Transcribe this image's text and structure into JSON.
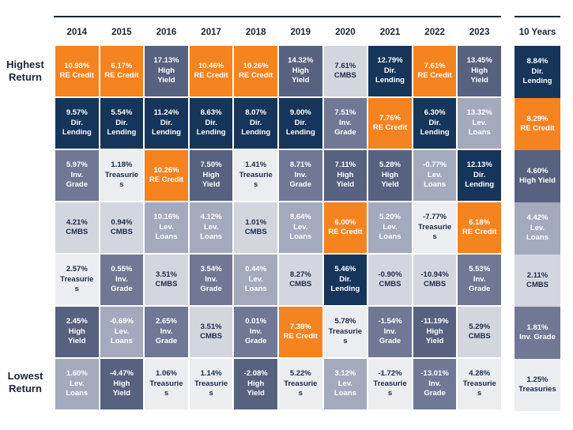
{
  "header": {
    "years": [
      "2014",
      "2015",
      "2016",
      "2017",
      "2018",
      "2019",
      "2020",
      "2021",
      "2022",
      "2023"
    ],
    "ten_years_label": "10 Years"
  },
  "left_labels": {
    "highest": "Highest Return",
    "lowest": "Lowest Return"
  },
  "palette": {
    "RE Credit": {
      "bg": "#F5831F",
      "fg": "#FFFFFF"
    },
    "Dir. Lending": {
      "bg": "#16355B",
      "fg": "#FFFFFF"
    },
    "High Yield": {
      "bg": "#56627F",
      "fg": "#FFFFFF"
    },
    "Inv. Grade": {
      "bg": "#707896",
      "fg": "#FFFFFF"
    },
    "Lev. Loans": {
      "bg": "#A4AABE",
      "fg": "#FFFFFF"
    },
    "CMBS": {
      "bg": "#D4D6DF",
      "fg": "#1B2B4A"
    },
    "Treasuries": {
      "bg": "#ECEDF1",
      "fg": "#1B2B4A"
    }
  },
  "chart_data": {
    "type": "heatmap",
    "columns": [
      "2014",
      "2015",
      "2016",
      "2017",
      "2018",
      "2019",
      "2020",
      "2021",
      "2022",
      "2023",
      "10 Years"
    ],
    "rank_top_label": "Highest Return",
    "rank_bottom_label": "Lowest Return",
    "rows": [
      [
        {
          "value": "10.98%",
          "asset": "RE Credit"
        },
        {
          "value": "6.17%",
          "asset": "RE Credit"
        },
        {
          "value": "17.13%",
          "asset": "High Yield"
        },
        {
          "value": "10.46%",
          "asset": "RE Credit"
        },
        {
          "value": "10.26%",
          "asset": "RE Credit"
        },
        {
          "value": "14.32%",
          "asset": "High Yield"
        },
        {
          "value": "7.61%",
          "asset": "CMBS"
        },
        {
          "value": "12.79%",
          "asset": "Dir. Lending"
        },
        {
          "value": "7.61%",
          "asset": "RE Credit"
        },
        {
          "value": "13.45%",
          "asset": "High Yield"
        },
        {
          "value": "8.84%",
          "asset": "Dir. Lending"
        }
      ],
      [
        {
          "value": "9.57%",
          "asset": "Dir. Lending"
        },
        {
          "value": "5.54%",
          "asset": "Dir. Lending"
        },
        {
          "value": "11.24%",
          "asset": "Dir. Lending"
        },
        {
          "value": "8.63%",
          "asset": "Dir. Lending"
        },
        {
          "value": "8.07%",
          "asset": "Dir. Lending"
        },
        {
          "value": "9.00%",
          "asset": "Dir. Lending"
        },
        {
          "value": "7.51%",
          "asset": "Inv. Grade"
        },
        {
          "value": "7.76%",
          "asset": "RE Credit"
        },
        {
          "value": "6.30%",
          "asset": "Dir. Lending"
        },
        {
          "value": "13.32%",
          "asset": "Lev. Loans"
        },
        {
          "value": "8.29%",
          "asset": "RE Credit"
        }
      ],
      [
        {
          "value": "5.97%",
          "asset": "Inv. Grade"
        },
        {
          "value": "1.18%",
          "asset": "Treasuries"
        },
        {
          "value": "10.26%",
          "asset": "RE Credit"
        },
        {
          "value": "7.50%",
          "asset": "High Yield"
        },
        {
          "value": "1.41%",
          "asset": "Treasuries"
        },
        {
          "value": "8.71%",
          "asset": "Inv. Grade"
        },
        {
          "value": "7.11%",
          "asset": "High Yield"
        },
        {
          "value": "5.28%",
          "asset": "High Yield"
        },
        {
          "value": "-0.77%",
          "asset": "Lev. Loans"
        },
        {
          "value": "12.13%",
          "asset": "Dir. Lending"
        },
        {
          "value": "4.60%",
          "asset": "High Yield"
        }
      ],
      [
        {
          "value": "4.21%",
          "asset": "CMBS"
        },
        {
          "value": "0.94%",
          "asset": "CMBS"
        },
        {
          "value": "10.16%",
          "asset": "Lev. Loans"
        },
        {
          "value": "4.12%",
          "asset": "Lev. Loans"
        },
        {
          "value": "1.01%",
          "asset": "CMBS"
        },
        {
          "value": "8.64%",
          "asset": "Lev. Loans"
        },
        {
          "value": "6.00%",
          "asset": "RE Credit"
        },
        {
          "value": "5.20%",
          "asset": "Lev. Loans"
        },
        {
          "value": "-7.77%",
          "asset": "Treasuries"
        },
        {
          "value": "6.18%",
          "asset": "RE Credit"
        },
        {
          "value": "4.42%",
          "asset": "Lev. Loans"
        }
      ],
      [
        {
          "value": "2.57%",
          "asset": "Treasuries"
        },
        {
          "value": "0.55%",
          "asset": "Inv. Grade"
        },
        {
          "value": "3.51%",
          "asset": "CMBS"
        },
        {
          "value": "3.54%",
          "asset": "Inv. Grade"
        },
        {
          "value": "0.44%",
          "asset": "Lev. Loans"
        },
        {
          "value": "8.27%",
          "asset": "CMBS"
        },
        {
          "value": "5.46%",
          "asset": "Dir. Lending"
        },
        {
          "value": "-0.90%",
          "asset": "CMBS"
        },
        {
          "value": "-10.94%",
          "asset": "CMBS"
        },
        {
          "value": "5.53%",
          "asset": "Inv. Grade"
        },
        {
          "value": "2.11%",
          "asset": "CMBS"
        }
      ],
      [
        {
          "value": "2.45%",
          "asset": "High Yield"
        },
        {
          "value": "-0.69%",
          "asset": "Lev. Loans"
        },
        {
          "value": "2.65%",
          "asset": "Inv. Grade"
        },
        {
          "value": "3.51%",
          "asset": "CMBS"
        },
        {
          "value": "0.01%",
          "asset": "Inv. Grade"
        },
        {
          "value": "7.38%",
          "asset": "RE Credit"
        },
        {
          "value": "5.78%",
          "asset": "Treasuries"
        },
        {
          "value": "-1.54%",
          "asset": "Inv. Grade"
        },
        {
          "value": "-11.19%",
          "asset": "High Yield"
        },
        {
          "value": "5.29%",
          "asset": "CMBS"
        },
        {
          "value": "1.81%",
          "asset": "Inv. Grade"
        }
      ],
      [
        {
          "value": "1.60%",
          "asset": "Lev. Loans"
        },
        {
          "value": "-4.47%",
          "asset": "High Yield"
        },
        {
          "value": "1.06%",
          "asset": "Treasuries"
        },
        {
          "value": "1.14%",
          "asset": "Treasuries"
        },
        {
          "value": "-2.08%",
          "asset": "High Yield"
        },
        {
          "value": "5.22%",
          "asset": "Treasuries"
        },
        {
          "value": "3.12%",
          "asset": "Lev. Loans"
        },
        {
          "value": "-1.72%",
          "asset": "Treasuries"
        },
        {
          "value": "-13.01%",
          "asset": "Inv. Grade"
        },
        {
          "value": "4.28%",
          "asset": "Treasuries"
        },
        {
          "value": "1.25%",
          "asset": "Treasuries"
        }
      ]
    ]
  }
}
